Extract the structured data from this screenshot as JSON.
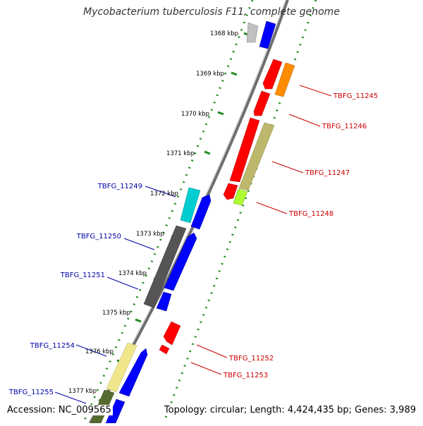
{
  "title": "Mycobacterium tuberculosis F11, complete genome",
  "footer": {
    "accession": "Accession: NC_009565",
    "summary": "Topology: circular; Length: 4,424,435 bp; Genes: 3,989"
  },
  "ticks": [
    {
      "label": "1368 kbp"
    },
    {
      "label": "1369 kbp"
    },
    {
      "label": "1370 kbp"
    },
    {
      "label": "1371 kbp"
    },
    {
      "label": "1372 kbp"
    },
    {
      "label": "1373 kbp"
    },
    {
      "label": "1374 kbp"
    },
    {
      "label": "1375 kbp"
    },
    {
      "label": "1376 kbp"
    },
    {
      "label": "1377 kbp"
    }
  ],
  "forward_labels": [
    {
      "name": "TBFG_11245",
      "color": "#cc0000"
    },
    {
      "name": "TBFG_11246",
      "color": "#cc0000"
    },
    {
      "name": "TBFG_11247",
      "color": "#cc0000"
    },
    {
      "name": "TBFG_11248",
      "color": "#cc0000"
    },
    {
      "name": "TBFG_11252",
      "color": "#cc0000"
    },
    {
      "name": "TBFG_11253",
      "color": "#cc0000"
    }
  ],
  "reverse_labels": [
    {
      "name": "TBFG_11249",
      "color": "#0000aa"
    },
    {
      "name": "TBFG_11250",
      "color": "#0000aa"
    },
    {
      "name": "TBFG_11251",
      "color": "#0000aa"
    },
    {
      "name": "TBFG_11254",
      "color": "#0000aa"
    },
    {
      "name": "TBFG_11255",
      "color": "#0000aa"
    }
  ],
  "colors": {
    "forward_cds": "#ff0000",
    "reverse_cds": "#0000ff",
    "forward_feature_orange": "#ff8c00",
    "forward_feature_khaki": "#bdb76b",
    "forward_feature_lime": "#adff2f",
    "reverse_feature_cyan": "#00ced1",
    "reverse_feature_gray": "#555555",
    "reverse_feature_lightgray": "#c0c0c0",
    "reverse_feature_yellow": "#f0e68c",
    "reverse_feature_olive": "#556b2f",
    "backbone": "#888888",
    "tick_dots": "#228b22"
  }
}
